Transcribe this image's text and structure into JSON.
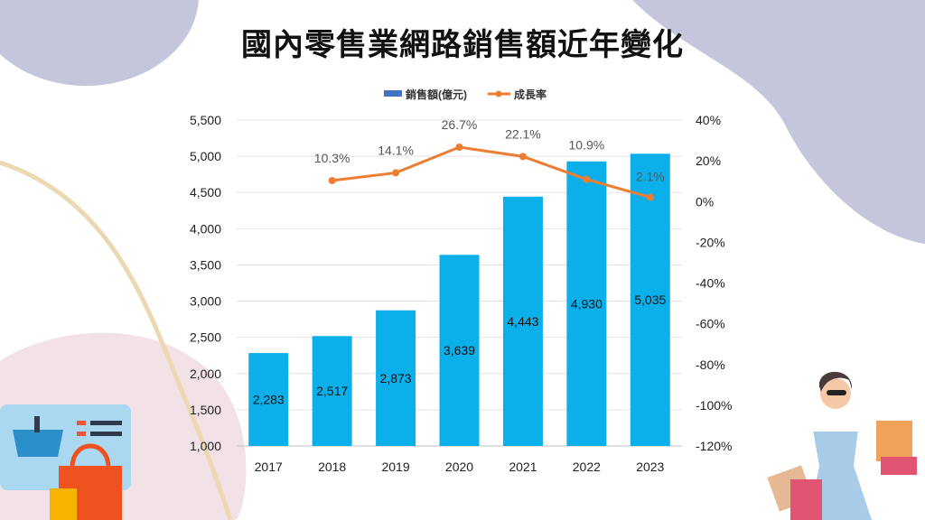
{
  "title": "國內零售業網路銷售額近年變化",
  "colors": {
    "bar": "#0bb0ea",
    "line": "#ed7d31",
    "legend_bar": "#4472c4",
    "blob": "#c5c6dc",
    "pink": "#f2e1e6"
  },
  "chart_data": {
    "type": "bar+line",
    "categories": [
      "2017",
      "2018",
      "2019",
      "2020",
      "2021",
      "2022",
      "2023"
    ],
    "series": [
      {
        "name": "銷售額(億元)",
        "type": "bar",
        "axis": "left",
        "values": [
          2283,
          2517,
          2873,
          3639,
          4443,
          4930,
          5035
        ],
        "labels": [
          "2,283",
          "2,517",
          "2,873",
          "3,639",
          "4,443",
          "4,930",
          "5,035"
        ]
      },
      {
        "name": "成長率",
        "type": "line",
        "axis": "right",
        "values": [
          null,
          10.3,
          14.1,
          26.7,
          22.1,
          10.9,
          2.1
        ],
        "labels": [
          "",
          "10.3%",
          "14.1%",
          "26.7%",
          "22.1%",
          "10.9%",
          "2.1%"
        ]
      }
    ],
    "left_axis": {
      "range": [
        1000,
        5500
      ],
      "ticks": [
        "1,000",
        "1,500",
        "2,000",
        "2,500",
        "3,000",
        "3,500",
        "4,000",
        "4,500",
        "5,000",
        "5,500"
      ]
    },
    "right_axis": {
      "range": [
        -120,
        40
      ],
      "ticks": [
        "-120%",
        "-100%",
        "-80%",
        "-60%",
        "-40%",
        "-20%",
        "0%",
        "20%",
        "40%"
      ]
    },
    "grid": true,
    "legend": "top"
  }
}
